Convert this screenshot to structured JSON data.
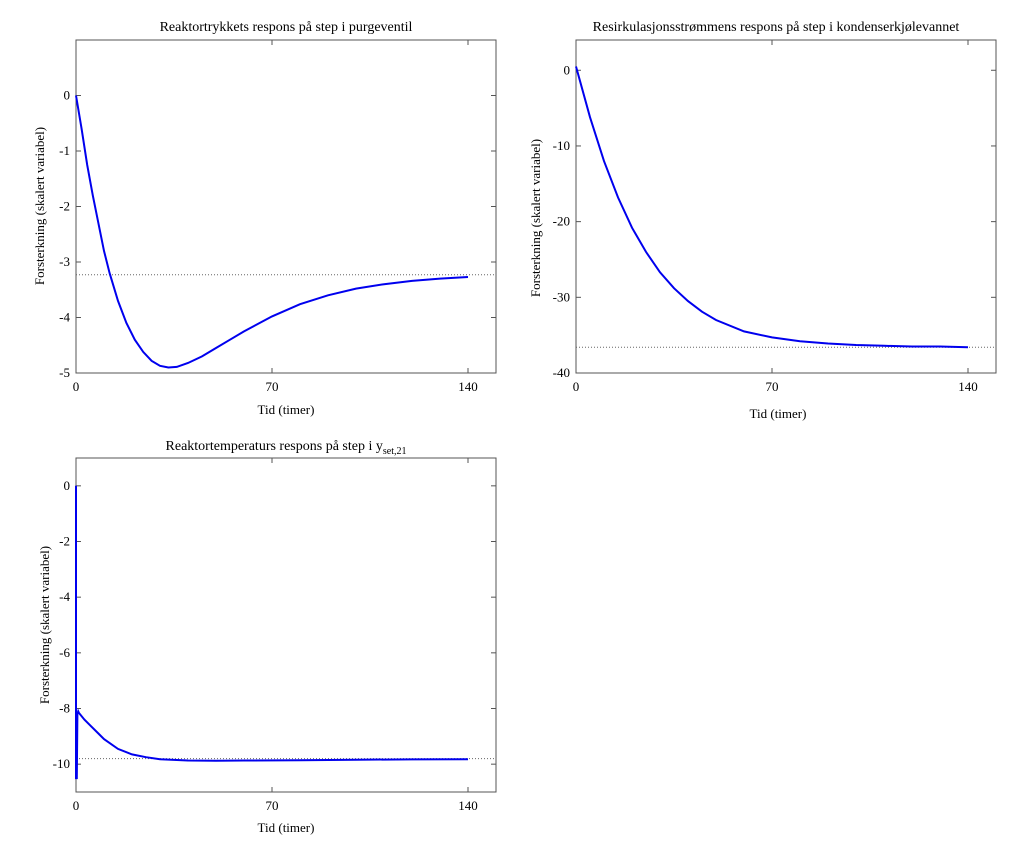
{
  "chart_data": [
    {
      "type": "line",
      "title": "Reaktortrykkets respons på step i purgeventil",
      "xlabel": "Tid (timer)",
      "ylabel": "Forsterkning (skalert variabel)",
      "xlim": [
        0,
        150
      ],
      "ylim": [
        -5,
        1
      ],
      "xticks": [
        0,
        70,
        140
      ],
      "yticks": [
        0,
        -1,
        -2,
        -3,
        -4,
        -5
      ],
      "reference_line": -3.23,
      "series": [
        {
          "color": "#0000ee",
          "x": [
            0,
            2,
            4,
            6,
            8,
            10,
            12,
            15,
            18,
            21,
            24,
            27,
            30,
            33,
            36,
            40,
            45,
            50,
            55,
            60,
            70,
            80,
            90,
            100,
            110,
            120,
            130,
            140
          ],
          "y": [
            0,
            -0.6,
            -1.25,
            -1.8,
            -2.3,
            -2.8,
            -3.2,
            -3.7,
            -4.1,
            -4.4,
            -4.62,
            -4.78,
            -4.87,
            -4.9,
            -4.89,
            -4.82,
            -4.7,
            -4.55,
            -4.4,
            -4.25,
            -3.98,
            -3.76,
            -3.6,
            -3.48,
            -3.4,
            -3.34,
            -3.3,
            -3.27
          ]
        }
      ]
    },
    {
      "type": "line",
      "title": "Resirkulasjonsstrømmens respons på step i kondenserkjølevannet",
      "xlabel": "Tid (timer)",
      "ylabel": "Forsterkning (skalert variabel)",
      "xlim": [
        0,
        150
      ],
      "ylim": [
        -40,
        4
      ],
      "xticks": [
        0,
        70,
        140
      ],
      "yticks": [
        0,
        -10,
        -20,
        -30,
        -40
      ],
      "reference_line": -36.6,
      "series": [
        {
          "color": "#0000ee",
          "x": [
            0,
            5,
            10,
            15,
            20,
            25,
            30,
            35,
            40,
            45,
            50,
            60,
            70,
            80,
            90,
            100,
            110,
            120,
            130,
            140
          ],
          "y": [
            0.5,
            -6.2,
            -12.0,
            -16.8,
            -20.8,
            -24.0,
            -26.7,
            -28.8,
            -30.5,
            -31.9,
            -33.0,
            -34.5,
            -35.3,
            -35.8,
            -36.1,
            -36.3,
            -36.4,
            -36.5,
            -36.5,
            -36.6
          ]
        }
      ]
    },
    {
      "type": "line",
      "title": "Reaktortemperaturs respons på step i y",
      "title_subscript": "set,21",
      "xlabel": "Tid (timer)",
      "ylabel": "Forsterkning (skalert variabel)",
      "xlim": [
        0,
        150
      ],
      "ylim": [
        -11,
        1
      ],
      "xticks": [
        0,
        70,
        140
      ],
      "yticks": [
        0,
        -2,
        -4,
        -6,
        -8,
        -10
      ],
      "reference_line": -9.8,
      "series": [
        {
          "color": "#0000ee",
          "x": [
            0,
            0,
            0.3,
            0.5,
            0.8,
            1,
            3,
            5,
            8,
            10,
            15,
            20,
            25,
            30,
            40,
            50,
            60,
            80,
            100,
            120,
            140
          ],
          "y": [
            0,
            -10.5,
            -10.5,
            -8.2,
            -8.1,
            -8.15,
            -8.4,
            -8.6,
            -8.9,
            -9.1,
            -9.45,
            -9.65,
            -9.75,
            -9.82,
            -9.87,
            -9.88,
            -9.87,
            -9.86,
            -9.84,
            -9.83,
            -9.82
          ]
        }
      ]
    }
  ]
}
